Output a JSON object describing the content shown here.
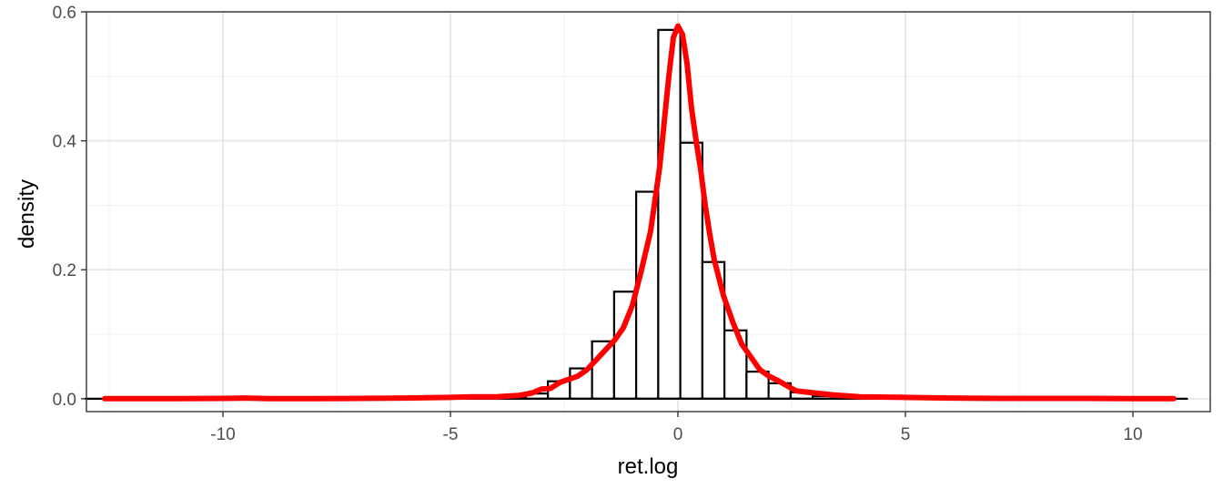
{
  "chart_data": {
    "type": "bar",
    "title": "",
    "xlabel": "ret.log",
    "ylabel": "density",
    "xlim": [
      -13.0,
      11.7
    ],
    "ylim": [
      -0.02,
      0.6
    ],
    "grid": true,
    "x_ticks": [
      {
        "value": -10,
        "label": "-10"
      },
      {
        "value": -5,
        "label": "-5"
      },
      {
        "value": 0,
        "label": "0"
      },
      {
        "value": 5,
        "label": "5"
      },
      {
        "value": 10,
        "label": "10"
      }
    ],
    "y_ticks": [
      {
        "value": 0.0,
        "label": "0.0"
      },
      {
        "value": 0.2,
        "label": "0.2"
      },
      {
        "value": 0.4,
        "label": "0.4"
      },
      {
        "value": 0.6,
        "label": "0.6"
      }
    ],
    "histogram": {
      "bin_width": 0.485,
      "bins": [
        [
          -12.8,
          0.0
        ],
        [
          -12.315,
          0.0
        ],
        [
          -11.83,
          0.0
        ],
        [
          -11.345,
          0.0
        ],
        [
          -10.86,
          0.0
        ],
        [
          -10.375,
          0.0
        ],
        [
          -9.89,
          0.0
        ],
        [
          -9.405,
          0.0
        ],
        [
          -8.92,
          0.0
        ],
        [
          -8.435,
          0.0
        ],
        [
          -7.95,
          0.0
        ],
        [
          -7.465,
          0.0
        ],
        [
          -6.98,
          0.0
        ],
        [
          -6.495,
          0.0
        ],
        [
          -6.01,
          0.0
        ],
        [
          -5.525,
          0.0
        ],
        [
          -5.04,
          0.0
        ],
        [
          -4.555,
          0.0
        ],
        [
          -4.07,
          0.0
        ],
        [
          -3.585,
          0.002
        ],
        [
          -3.1,
          0.008
        ],
        [
          -2.615,
          0.027
        ],
        [
          -2.13,
          0.047
        ],
        [
          -1.645,
          0.089
        ],
        [
          -1.16,
          0.166
        ],
        [
          -0.675,
          0.321
        ],
        [
          -0.19,
          0.572
        ],
        [
          0.295,
          0.397
        ],
        [
          0.78,
          0.212
        ],
        [
          1.265,
          0.106
        ],
        [
          1.75,
          0.042
        ],
        [
          2.235,
          0.024
        ],
        [
          2.72,
          0.01
        ],
        [
          3.205,
          0.004
        ],
        [
          3.69,
          0.001
        ],
        [
          4.175,
          0.0
        ],
        [
          4.66,
          0.0
        ],
        [
          5.145,
          0.0
        ],
        [
          5.63,
          0.0
        ],
        [
          6.115,
          0.0
        ],
        [
          6.6,
          0.0
        ],
        [
          7.085,
          0.0
        ],
        [
          7.57,
          0.0
        ],
        [
          8.055,
          0.0
        ],
        [
          8.54,
          0.0
        ],
        [
          9.025,
          0.0
        ],
        [
          9.51,
          0.0
        ],
        [
          9.995,
          0.0
        ],
        [
          10.48,
          0.0
        ],
        [
          10.965,
          0.0
        ]
      ]
    },
    "density_curve": {
      "color": "#ff0000",
      "points": [
        [
          -12.6,
          0.0
        ],
        [
          -11.0,
          0.0
        ],
        [
          -10.0,
          0.0005
        ],
        [
          -9.5,
          0.001
        ],
        [
          -9.0,
          0.0
        ],
        [
          -8.0,
          0.0
        ],
        [
          -7.0,
          0.0005
        ],
        [
          -6.0,
          0.001
        ],
        [
          -5.0,
          0.002
        ],
        [
          -4.5,
          0.003
        ],
        [
          -4.0,
          0.003
        ],
        [
          -3.5,
          0.005
        ],
        [
          -3.2,
          0.009
        ],
        [
          -3.0,
          0.015
        ],
        [
          -2.8,
          0.016
        ],
        [
          -2.6,
          0.025
        ],
        [
          -2.4,
          0.03
        ],
        [
          -2.2,
          0.035
        ],
        [
          -2.0,
          0.045
        ],
        [
          -1.8,
          0.06
        ],
        [
          -1.6,
          0.075
        ],
        [
          -1.4,
          0.09
        ],
        [
          -1.2,
          0.11
        ],
        [
          -1.0,
          0.145
        ],
        [
          -0.8,
          0.2
        ],
        [
          -0.6,
          0.26
        ],
        [
          -0.4,
          0.36
        ],
        [
          -0.3,
          0.43
        ],
        [
          -0.2,
          0.5
        ],
        [
          -0.1,
          0.56
        ],
        [
          0.0,
          0.578
        ],
        [
          0.1,
          0.565
        ],
        [
          0.2,
          0.52
        ],
        [
          0.3,
          0.45
        ],
        [
          0.4,
          0.4
        ],
        [
          0.5,
          0.355
        ],
        [
          0.6,
          0.3
        ],
        [
          0.7,
          0.255
        ],
        [
          0.8,
          0.215
        ],
        [
          1.0,
          0.16
        ],
        [
          1.2,
          0.12
        ],
        [
          1.4,
          0.085
        ],
        [
          1.6,
          0.065
        ],
        [
          1.8,
          0.045
        ],
        [
          2.0,
          0.035
        ],
        [
          2.2,
          0.028
        ],
        [
          2.4,
          0.02
        ],
        [
          2.6,
          0.012
        ],
        [
          3.0,
          0.009
        ],
        [
          3.4,
          0.006
        ],
        [
          4.0,
          0.003
        ],
        [
          5.0,
          0.002
        ],
        [
          6.0,
          0.001
        ],
        [
          7.0,
          0.0005
        ],
        [
          8.0,
          0.0005
        ],
        [
          9.0,
          0.0005
        ],
        [
          10.0,
          0.0
        ],
        [
          10.9,
          0.0
        ]
      ]
    }
  }
}
